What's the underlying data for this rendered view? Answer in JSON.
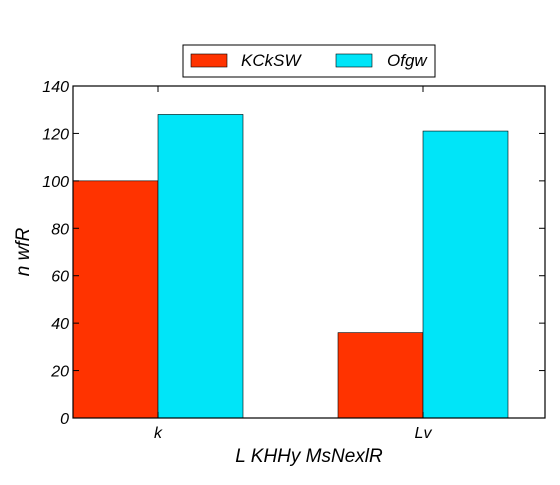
{
  "chart_data": {
    "type": "bar",
    "title": "",
    "xlabel": "L KHHy MsNexlR",
    "ylabel": "n wfR",
    "categories": [
      "k",
      "Lv"
    ],
    "series": [
      {
        "name": "KCkSW",
        "values": [
          100,
          36
        ],
        "color": "#ff3300"
      },
      {
        "name": "Ofgw",
        "values": [
          128,
          121
        ],
        "color": "#00e5f8"
      }
    ],
    "ylim": [
      0,
      140
    ],
    "yticks": [
      0,
      20,
      40,
      60,
      80,
      100,
      120,
      140
    ],
    "grid": false,
    "legend": "top-center, above plot"
  }
}
